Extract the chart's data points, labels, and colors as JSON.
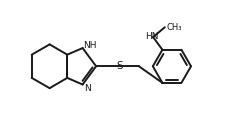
{
  "bg_color": "#ffffff",
  "line_color": "#1a1a1a",
  "line_width": 1.4,
  "font_size": 7.0,
  "figsize": [
    2.46,
    1.24
  ],
  "dpi": 100,
  "xlim": [
    0.0,
    10.0
  ],
  "ylim": [
    1.0,
    5.5
  ]
}
